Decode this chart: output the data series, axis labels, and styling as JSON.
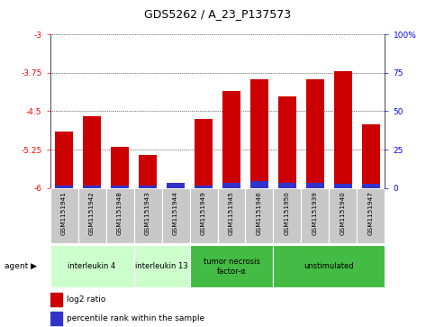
{
  "title": "GDS5262 / A_23_P137573",
  "samples": [
    "GSM1151941",
    "GSM1151942",
    "GSM1151948",
    "GSM1151943",
    "GSM1151944",
    "GSM1151949",
    "GSM1151945",
    "GSM1151946",
    "GSM1151950",
    "GSM1151939",
    "GSM1151940",
    "GSM1151947"
  ],
  "log2_values": [
    -4.9,
    -4.6,
    -5.2,
    -5.35,
    -5.93,
    -4.65,
    -4.1,
    -3.88,
    -4.22,
    -3.88,
    -3.72,
    -4.75
  ],
  "percentile_values": [
    1.5,
    1.5,
    1.5,
    1.5,
    3.5,
    1.5,
    3.5,
    4.5,
    3.5,
    3.5,
    2.5,
    2.5
  ],
  "ylim_left": [
    -6.0,
    -3.0
  ],
  "ylim_right": [
    0,
    100
  ],
  "yticks_left": [
    -6.0,
    -5.25,
    -4.5,
    -3.75,
    -3.0
  ],
  "yticks_right": [
    0,
    25,
    50,
    75,
    100
  ],
  "ytick_labels_left": [
    "-6",
    "-5.25",
    "-4.5",
    "-3.75",
    "-3"
  ],
  "ytick_labels_right": [
    "0",
    "25",
    "50",
    "75",
    "100%"
  ],
  "bar_color_red": "#cc0000",
  "bar_color_blue": "#3333cc",
  "group_spans": [
    [
      0,
      2,
      "interleukin 4",
      "#ccffcc"
    ],
    [
      3,
      4,
      "interleukin 13",
      "#ccffcc"
    ],
    [
      5,
      7,
      "tumor necrosis\nfactor-α",
      "#44bb44"
    ],
    [
      8,
      11,
      "unstimulated",
      "#44bb44"
    ]
  ],
  "legend_red_label": "log2 ratio",
  "legend_blue_label": "percentile rank within the sample",
  "bg_color": "#ffffff",
  "title_fontsize": 9,
  "tick_fontsize": 6.5,
  "sample_fontsize": 5.2
}
